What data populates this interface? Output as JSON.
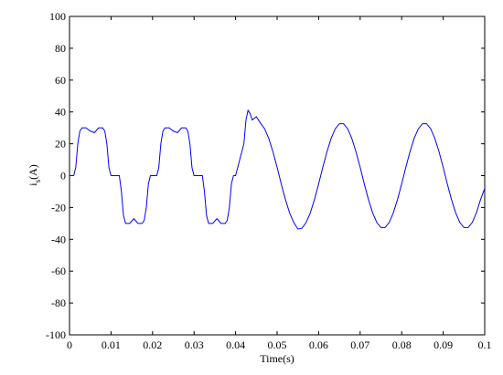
{
  "chart_data": {
    "type": "line",
    "xlabel": "Time(s)",
    "ylabel": [
      "i",
      "s",
      "(A)"
    ],
    "xlim": [
      0,
      0.1
    ],
    "ylim": [
      -100,
      100
    ],
    "xticks": [
      0,
      0.01,
      0.02,
      0.03,
      0.04,
      0.05,
      0.06,
      0.07,
      0.08,
      0.09,
      0.1
    ],
    "yticks": [
      -100,
      -80,
      -60,
      -40,
      -20,
      0,
      20,
      40,
      60,
      80,
      100
    ],
    "x": [
      0,
      0.001,
      0.0015,
      0.002,
      0.0025,
      0.003,
      0.004,
      0.005,
      0.006,
      0.007,
      0.008,
      0.0085,
      0.009,
      0.0095,
      0.01,
      0.012,
      0.0125,
      0.013,
      0.0135,
      0.0145,
      0.0155,
      0.0165,
      0.0175,
      0.018,
      0.0185,
      0.019,
      0.0195,
      0.02,
      0.021,
      0.0215,
      0.022,
      0.0225,
      0.023,
      0.024,
      0.025,
      0.026,
      0.027,
      0.028,
      0.0285,
      0.029,
      0.0295,
      0.03,
      0.032,
      0.0325,
      0.033,
      0.0335,
      0.0345,
      0.0355,
      0.0365,
      0.0375,
      0.038,
      0.0385,
      0.039,
      0.0395,
      0.04,
      0.041,
      0.042,
      0.0425,
      0.043,
      0.0435,
      0.044,
      0.045,
      0.046,
      0.047,
      0.048,
      0.049,
      0.05,
      0.051,
      0.052,
      0.053,
      0.054,
      0.055,
      0.056,
      0.057,
      0.058,
      0.059,
      0.06,
      0.061,
      0.062,
      0.063,
      0.064,
      0.065,
      0.066,
      0.067,
      0.068,
      0.069,
      0.07,
      0.071,
      0.072,
      0.073,
      0.074,
      0.075,
      0.076,
      0.077,
      0.078,
      0.079,
      0.08,
      0.081,
      0.082,
      0.083,
      0.084,
      0.085,
      0.086,
      0.087,
      0.088,
      0.089,
      0.09,
      0.091,
      0.092,
      0.093,
      0.094,
      0.095,
      0.096,
      0.097,
      0.098,
      0.099,
      0.1
    ],
    "series": [
      {
        "color": "#0000ff",
        "values": [
          0,
          0,
          5,
          20,
          28,
          30,
          30,
          28,
          27,
          30,
          30,
          28,
          20,
          5,
          0,
          0,
          -10,
          -25,
          -30,
          -30,
          -27,
          -30,
          -30,
          -28,
          -20,
          -5,
          0,
          0,
          0,
          5,
          20,
          28,
          30,
          30,
          28,
          27,
          30,
          30,
          28,
          20,
          5,
          0,
          0,
          -10,
          -25,
          -30,
          -30,
          -27,
          -30,
          -30,
          -28,
          -20,
          -5,
          0,
          0,
          10,
          20,
          35,
          41,
          39,
          35,
          37,
          33,
          29.4,
          23.3,
          15,
          5.2,
          -5.2,
          -15,
          -23.3,
          -29.4,
          -33.5,
          -33,
          -29.4,
          -23.3,
          -15,
          -5.2,
          5.2,
          15,
          23.3,
          29.4,
          32.6,
          32.6,
          29.4,
          23.3,
          15,
          5.2,
          -5.2,
          -15,
          -23.3,
          -29.4,
          -32.6,
          -32.6,
          -29.4,
          -23.3,
          -15,
          -5.2,
          5.2,
          15,
          23.3,
          29.4,
          32.6,
          32.6,
          29.4,
          23.3,
          15,
          5.2,
          -5.2,
          -15,
          -23.3,
          -29.4,
          -32.6,
          -32.6,
          -29.4,
          -23.3,
          -15,
          -8
        ]
      }
    ]
  }
}
